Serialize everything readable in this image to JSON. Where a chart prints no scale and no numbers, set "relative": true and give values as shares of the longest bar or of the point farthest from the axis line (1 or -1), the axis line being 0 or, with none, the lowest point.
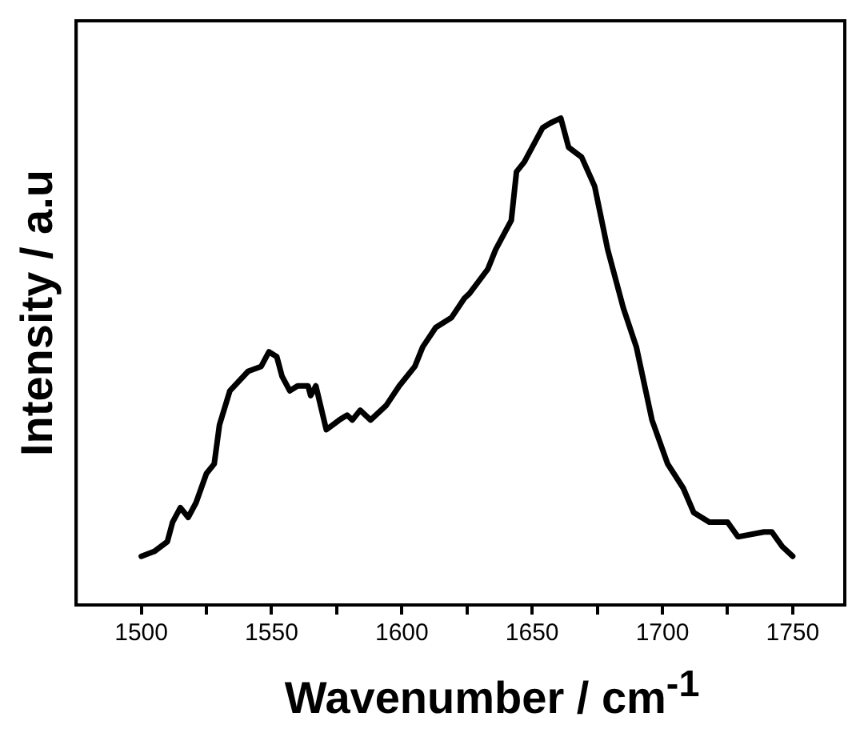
{
  "chart_data": {
    "type": "line",
    "xlabel": "Wavenumber / cm$^{-1}$",
    "ylabel": "Intensity / a.u",
    "relative": true,
    "legend": false,
    "grid": false,
    "xlim": [
      1475,
      1770
    ],
    "xticks": [
      1500,
      {
        "value": 1525,
        "label": null
      },
      1550,
      {
        "value": 1575,
        "label": null
      },
      1600,
      {
        "value": 1625,
        "label": null
      },
      1650,
      {
        "value": 1675,
        "label": null
      },
      1700,
      {
        "value": 1725,
        "label": null
      },
      1750
    ],
    "series": [
      {
        "color": "#000000",
        "x": [
          1500,
          1505,
          1510,
          1512,
          1515,
          1518,
          1521,
          1525,
          1528,
          1530,
          1534,
          1541,
          1546,
          1549,
          1552,
          1554,
          1557,
          1560,
          1564,
          1565,
          1567,
          1571,
          1576,
          1579,
          1581,
          1584,
          1588,
          1594,
          1599,
          1605,
          1608,
          1613,
          1619,
          1624,
          1626,
          1633,
          1636,
          1642,
          1644,
          1647,
          1654,
          1657,
          1661,
          1664,
          1669,
          1674,
          1679,
          1685,
          1690,
          1696,
          1702,
          1708,
          1712,
          1718,
          1725,
          1729,
          1739,
          1742,
          1746,
          1750
        ],
        "values": [
          0.1,
          0.11,
          0.13,
          0.17,
          0.2,
          0.18,
          0.21,
          0.27,
          0.29,
          0.37,
          0.44,
          0.48,
          0.49,
          0.52,
          0.51,
          0.47,
          0.44,
          0.45,
          0.45,
          0.43,
          0.45,
          0.36,
          0.38,
          0.39,
          0.38,
          0.4,
          0.38,
          0.41,
          0.45,
          0.49,
          0.53,
          0.57,
          0.59,
          0.63,
          0.64,
          0.69,
          0.73,
          0.79,
          0.89,
          0.91,
          0.98,
          0.99,
          1.0,
          0.94,
          0.92,
          0.86,
          0.73,
          0.61,
          0.53,
          0.38,
          0.29,
          0.24,
          0.19,
          0.17,
          0.17,
          0.14,
          0.15,
          0.15,
          0.12,
          0.1
        ]
      }
    ]
  }
}
